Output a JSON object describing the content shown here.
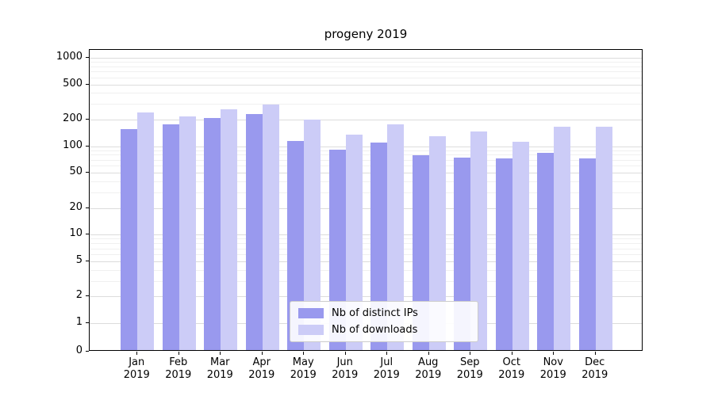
{
  "chart_data": {
    "type": "bar",
    "title": "progeny 2019",
    "year": "2019",
    "categories": [
      "Jan",
      "Feb",
      "Mar",
      "Apr",
      "May",
      "Jun",
      "Jul",
      "Aug",
      "Sep",
      "Oct",
      "Nov",
      "Dec"
    ],
    "series": [
      {
        "name": "Nb of distinct IPs",
        "color": "#9999ee",
        "values": [
          150,
          170,
          200,
          220,
          110,
          88,
          105,
          76,
          72,
          70,
          80,
          70
        ]
      },
      {
        "name": "Nb of downloads",
        "color": "#ccccf7",
        "values": [
          230,
          210,
          250,
          285,
          190,
          130,
          170,
          125,
          140,
          108,
          160,
          160
        ]
      }
    ],
    "y_ticks": [
      0,
      1,
      2,
      5,
      10,
      20,
      50,
      100,
      200,
      500,
      1000
    ],
    "y_scale": "symlog",
    "ylim": [
      0,
      1000
    ],
    "grid": true,
    "legend_position": "lower center"
  }
}
